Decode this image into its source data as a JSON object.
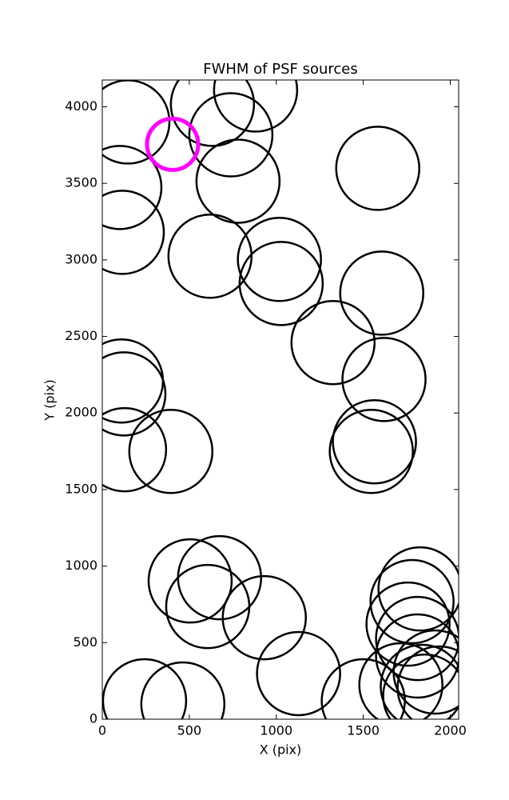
{
  "chart_data": {
    "type": "scatter",
    "title": "FWHM of PSF sources",
    "x_label": "X (pix)",
    "y_label": "Y (pix)",
    "xlim": [
      0,
      2048
    ],
    "ylim": [
      0,
      4175
    ],
    "xticks": [
      0,
      500,
      1000,
      1500,
      2000
    ],
    "yticks": [
      0,
      500,
      1000,
      1500,
      2000,
      2500,
      3000,
      3500,
      4000
    ],
    "marker": "open-circle",
    "series": [
      {
        "color": "#000000",
        "x": [
          147,
          633,
          881,
          739,
          780,
          101,
          115,
          1583,
          619,
          1018,
          1028,
          1606,
          1326,
          1619,
          110,
          124,
          128,
          394,
          1564,
          1546,
          505,
          674,
          606,
          931,
          1826,
          1780,
          1757,
          1812,
          1812,
          1913,
          1128,
          243,
          463,
          1500,
          1716,
          1839,
          1853,
          1936
        ],
        "y": [
          3901,
          4016,
          4110,
          3817,
          3514,
          3473,
          3180,
          3598,
          3024,
          3003,
          2846,
          2783,
          2460,
          2219,
          2209,
          2125,
          1760,
          1749,
          1812,
          1749,
          903,
          924,
          736,
          663,
          851,
          768,
          621,
          527,
          413,
          308,
          298,
          120,
          99,
          120,
          225,
          214,
          151,
          204
        ]
      },
      {
        "color": "#ff00ff",
        "x": [
          404
        ],
        "y": [
          3755
        ]
      }
    ]
  }
}
